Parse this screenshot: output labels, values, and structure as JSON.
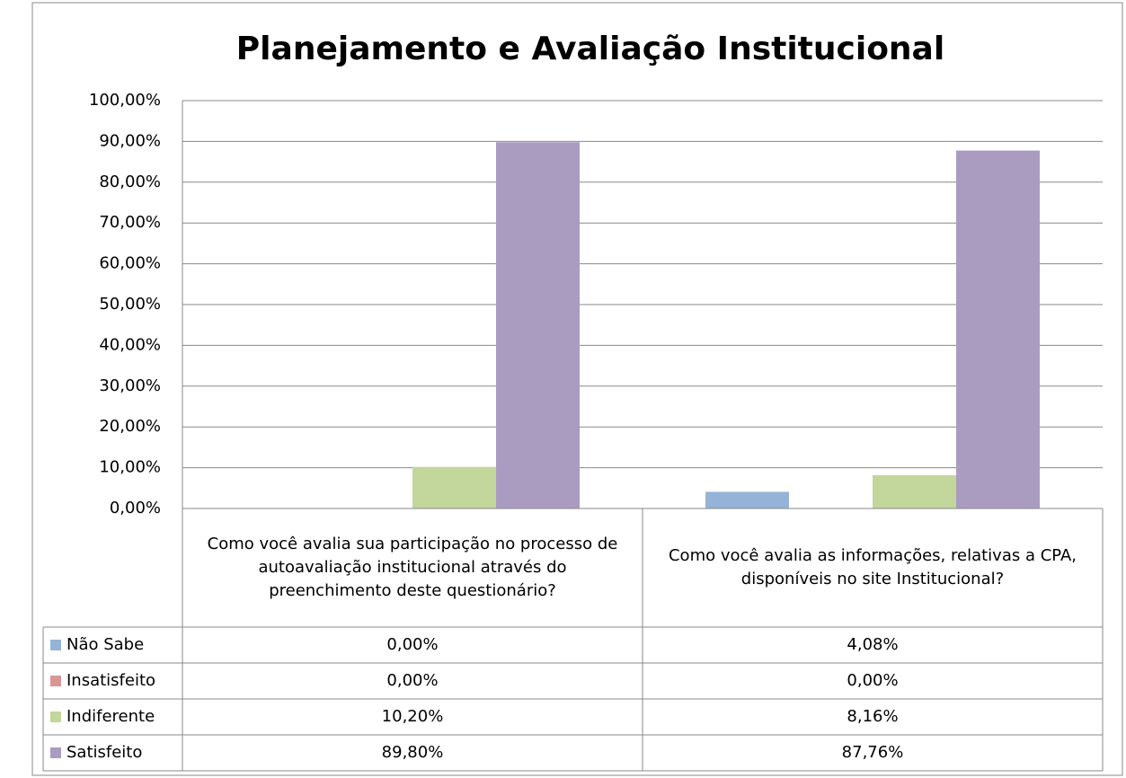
{
  "chart_data": {
    "type": "bar",
    "title": "Planejamento e Avaliação Institucional",
    "categories": [
      "Como você avalia sua participação no processo de autoavaliação institucional através do preenchimento deste questionário?",
      "Como você avalia as informações, relativas a CPA, disponíveis no site Institucional?"
    ],
    "series": [
      {
        "name": "Não Sabe",
        "color": "#95b3d7",
        "values": [
          0,
          4.08
        ],
        "value_labels": [
          "0,00%",
          "4,08%"
        ]
      },
      {
        "name": "Insatisfeito",
        "color": "#d99694",
        "values": [
          0,
          0
        ],
        "value_labels": [
          "0,00%",
          "0,00%"
        ]
      },
      {
        "name": "Indiferente",
        "color": "#c3d69b",
        "values": [
          10.2,
          8.16
        ],
        "value_labels": [
          "10,20%",
          "8,16%"
        ]
      },
      {
        "name": "Satisfeito",
        "color": "#a99cc0",
        "values": [
          89.8,
          87.76
        ],
        "value_labels": [
          "89,80%",
          "87,76%"
        ]
      }
    ],
    "ylim": [
      0,
      100
    ],
    "yticks": [
      {
        "value": 0,
        "label": "0,00%"
      },
      {
        "value": 10,
        "label": "10,00%"
      },
      {
        "value": 20,
        "label": "20,00%"
      },
      {
        "value": 30,
        "label": "30,00%"
      },
      {
        "value": 40,
        "label": "40,00%"
      },
      {
        "value": 50,
        "label": "50,00%"
      },
      {
        "value": 60,
        "label": "60,00%"
      },
      {
        "value": 70,
        "label": "70,00%"
      },
      {
        "value": 80,
        "label": "80,00%"
      },
      {
        "value": 90,
        "label": "90,00%"
      },
      {
        "value": 100,
        "label": "100,00%"
      }
    ],
    "grid": true
  }
}
